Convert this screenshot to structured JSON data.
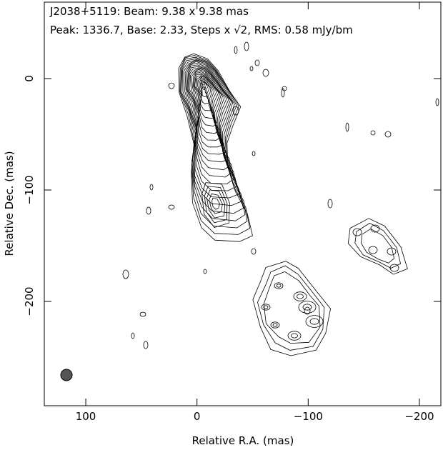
{
  "chart_data": {
    "type": "contour",
    "title": "J2038+5119: Beam: 9.38 x 9.38 mas",
    "subtitle": "Peak: 1336.7, Base: 2.33, Steps x √2, RMS: 0.58 mJy/bm",
    "x_label": "Relative R.A. (mas)",
    "y_label": "Relative Dec. (mas)",
    "xlim": [
      137.3,
      -219.3
    ],
    "ylim": [
      -293.6,
      68.6
    ],
    "xticks": [
      100,
      0,
      {
        "value": -100,
        "label": "−100"
      },
      {
        "value": -200,
        "label": "−200"
      }
    ],
    "yticks": [
      0,
      {
        "value": -100,
        "label": "−100"
      },
      {
        "value": -200,
        "label": "−200"
      }
    ],
    "color": "#000000"
  }
}
